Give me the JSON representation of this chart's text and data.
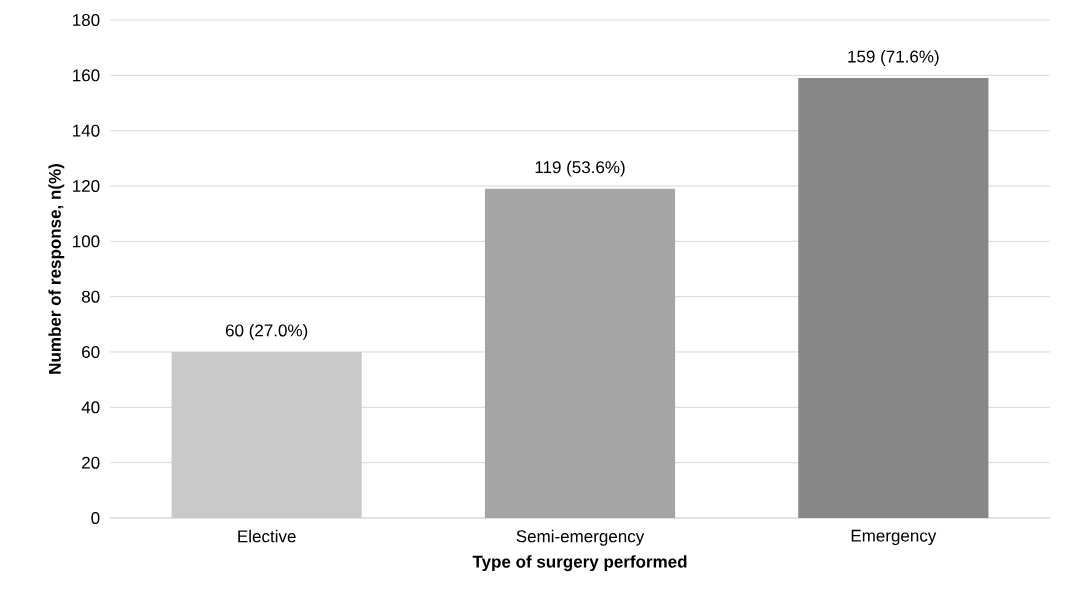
{
  "chart_data": {
    "type": "bar",
    "xlabel": "Type of surgery performed",
    "ylabel": "Number of response, n(%)",
    "categories": [
      "Elective",
      "Semi-emergency",
      "Emergency"
    ],
    "values": [
      60,
      119,
      159
    ],
    "colors": [
      "#c9c9c9",
      "#a5a5a5",
      "#878787"
    ],
    "value_labels": [
      "60 (27.0%)",
      "119 (53.6%)",
      "159 (71.6%)"
    ],
    "ylim": [
      0,
      180
    ],
    "yticks": [
      0,
      20,
      40,
      60,
      80,
      100,
      120,
      140,
      160,
      180
    ],
    "grid": "y"
  }
}
